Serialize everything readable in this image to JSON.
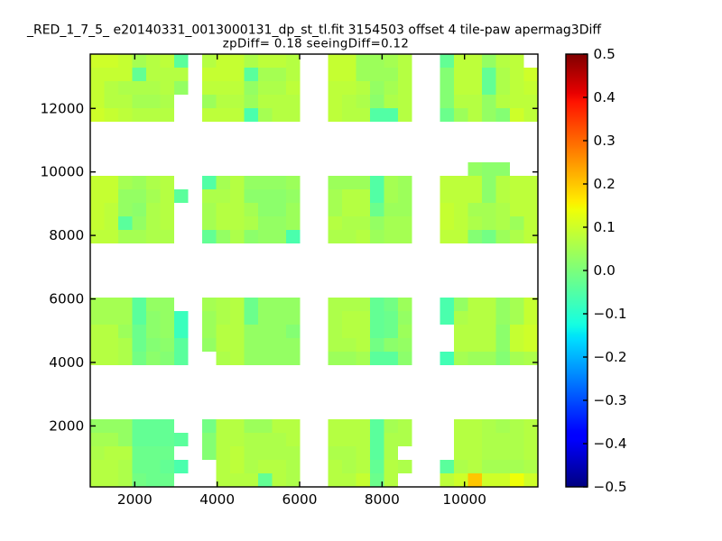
{
  "title": {
    "line1": "_RED_1_7_5_ e20140331_0013000131_dp_st_tl.fit 3154503 offset 4 tile-paw apermag3Diff",
    "line2": "zpDiff= 0.18 seeingDiff=0.12"
  },
  "chart_data": {
    "type": "heatmap",
    "colormap": "jet",
    "vmin": -0.5,
    "vmax": 0.5,
    "background_color": "#ffffff",
    "axis_color": "#000000",
    "x_range": [
      920,
      11780
    ],
    "y_range": [
      80,
      13711
    ],
    "grid": {
      "cols": 32,
      "rows": 32
    },
    "x_ticks": [
      {
        "value": 2000,
        "label": "2000"
      },
      {
        "value": 4000,
        "label": "4000"
      },
      {
        "value": 6000,
        "label": "6000"
      },
      {
        "value": 8000,
        "label": "8000"
      },
      {
        "value": 10000,
        "label": "10000"
      }
    ],
    "y_ticks": [
      {
        "value": 2000,
        "label": "2000"
      },
      {
        "value": 4000,
        "label": "4000"
      },
      {
        "value": 6000,
        "label": "6000"
      },
      {
        "value": 8000,
        "label": "8000"
      },
      {
        "value": 10000,
        "label": "10000"
      },
      {
        "value": 12000,
        "label": "12000"
      }
    ],
    "colorbar_ticks": [
      {
        "value": 0.5,
        "label": "0.5"
      },
      {
        "value": 0.4,
        "label": "0.4"
      },
      {
        "value": 0.3,
        "label": "0.3"
      },
      {
        "value": 0.2,
        "label": "0.2"
      },
      {
        "value": 0.1,
        "label": "0.1"
      },
      {
        "value": 0.0,
        "label": "0.0"
      },
      {
        "value": -0.1,
        "label": "−0.1"
      },
      {
        "value": -0.2,
        "label": "−0.2"
      },
      {
        "value": -0.3,
        "label": "−0.3"
      },
      {
        "value": -0.4,
        "label": "−0.4"
      },
      {
        "value": -0.5,
        "label": "−0.5"
      }
    ],
    "values": [
      [
        0.1,
        0.1,
        0.09,
        0.05,
        0.07,
        0.08,
        -0.04,
        null,
        0.07,
        0.09,
        0.09,
        0.06,
        0.08,
        0.08,
        0.07,
        null,
        null,
        0.09,
        0.09,
        0.04,
        0.04,
        0.05,
        0.07,
        null,
        null,
        -0.03,
        0.08,
        0.08,
        0.03,
        0.07,
        0.08,
        null
      ],
      [
        0.09,
        0.09,
        0.09,
        -0.03,
        0.07,
        0.07,
        0.07,
        null,
        0.09,
        0.09,
        0.09,
        -0.04,
        0.05,
        0.05,
        0.07,
        null,
        null,
        0.09,
        0.09,
        0.04,
        0.04,
        0.04,
        0.07,
        null,
        null,
        0.01,
        0.08,
        0.08,
        -0.03,
        0.06,
        0.08,
        0.1
      ],
      [
        0.09,
        0.07,
        0.06,
        0.06,
        0.06,
        0.07,
        0.03,
        null,
        0.08,
        0.08,
        0.08,
        0.03,
        0.06,
        0.06,
        0.08,
        null,
        null,
        0.08,
        0.08,
        0.07,
        0.03,
        0.05,
        0.07,
        null,
        null,
        0.01,
        0.08,
        0.08,
        -0.03,
        0.06,
        0.08,
        0.09
      ],
      [
        0.09,
        0.07,
        0.07,
        0.05,
        0.05,
        0.06,
        null,
        null,
        0.04,
        0.07,
        0.07,
        0.04,
        0.07,
        0.07,
        0.07,
        null,
        null,
        0.08,
        0.07,
        0.06,
        0.02,
        0.06,
        0.07,
        null,
        null,
        0.01,
        0.07,
        0.07,
        0.03,
        0.07,
        0.08,
        0.08
      ],
      [
        0.1,
        0.09,
        0.08,
        0.07,
        0.07,
        0.07,
        null,
        null,
        0.08,
        0.08,
        0.08,
        -0.06,
        0.05,
        0.07,
        0.07,
        null,
        null,
        0.08,
        0.07,
        0.07,
        -0.05,
        -0.05,
        0.07,
        null,
        null,
        -0.02,
        0.04,
        0.07,
        0.03,
        0.01,
        0.1,
        0.08
      ],
      [
        null,
        null,
        null,
        null,
        null,
        null,
        null,
        null,
        null,
        null,
        null,
        null,
        null,
        null,
        null,
        null,
        null,
        null,
        null,
        null,
        null,
        null,
        null,
        null,
        null,
        null,
        null,
        null,
        null,
        null,
        null,
        null
      ],
      [
        null,
        null,
        null,
        null,
        null,
        null,
        null,
        null,
        null,
        null,
        null,
        null,
        null,
        null,
        null,
        null,
        null,
        null,
        null,
        null,
        null,
        null,
        null,
        null,
        null,
        null,
        null,
        null,
        null,
        null,
        null,
        null
      ],
      [
        null,
        null,
        null,
        null,
        null,
        null,
        null,
        null,
        null,
        null,
        null,
        null,
        null,
        null,
        null,
        null,
        null,
        null,
        null,
        null,
        null,
        null,
        null,
        null,
        null,
        null,
        null,
        null,
        null,
        null,
        null,
        null
      ],
      [
        null,
        null,
        null,
        null,
        null,
        null,
        null,
        null,
        null,
        null,
        null,
        null,
        null,
        null,
        null,
        null,
        null,
        null,
        null,
        null,
        null,
        null,
        null,
        null,
        null,
        null,
        null,
        0.03,
        0.02,
        0.02,
        null,
        null
      ],
      [
        0.09,
        0.09,
        0.05,
        0.04,
        0.06,
        0.07,
        null,
        null,
        -0.05,
        0.05,
        0.07,
        0.03,
        0.03,
        0.03,
        0.04,
        null,
        null,
        0.04,
        0.04,
        0.04,
        -0.05,
        0.05,
        0.04,
        null,
        null,
        0.08,
        0.08,
        0.08,
        0.02,
        0.07,
        0.08,
        0.08
      ],
      [
        0.09,
        0.09,
        0.03,
        0.03,
        0.05,
        0.07,
        -0.04,
        null,
        0.06,
        0.06,
        0.07,
        0.02,
        0.02,
        0.02,
        0.03,
        null,
        null,
        0.05,
        0.07,
        0.07,
        -0.05,
        0.05,
        0.04,
        null,
        null,
        0.08,
        0.08,
        0.08,
        0.02,
        0.07,
        0.08,
        0.08
      ],
      [
        0.09,
        0.08,
        0.03,
        0.02,
        0.06,
        0.07,
        null,
        null,
        0.05,
        0.07,
        0.07,
        0.05,
        0.02,
        0.02,
        0.04,
        null,
        null,
        0.05,
        0.07,
        0.07,
        -0.02,
        0.04,
        0.04,
        null,
        null,
        0.09,
        0.08,
        0.05,
        0.05,
        0.06,
        0.08,
        0.08
      ],
      [
        0.09,
        0.08,
        -0.04,
        0.03,
        0.06,
        0.07,
        null,
        null,
        0.05,
        0.07,
        0.07,
        0.06,
        0.03,
        0.03,
        0.04,
        null,
        null,
        0.07,
        0.06,
        0.06,
        0.03,
        0.05,
        0.05,
        null,
        null,
        0.09,
        0.08,
        0.06,
        0.05,
        0.06,
        0.04,
        0.08
      ],
      [
        0.08,
        0.08,
        0.05,
        0.05,
        0.06,
        0.06,
        null,
        null,
        -0.03,
        0.03,
        0.06,
        0.02,
        0.03,
        0.03,
        -0.06,
        null,
        null,
        0.06,
        0.06,
        0.07,
        0.04,
        0.05,
        0.05,
        null,
        null,
        0.08,
        0.08,
        0.01,
        -0.01,
        0.04,
        0.06,
        0.08
      ],
      [
        null,
        null,
        null,
        null,
        null,
        null,
        null,
        null,
        null,
        null,
        null,
        null,
        null,
        null,
        null,
        null,
        null,
        null,
        null,
        null,
        null,
        null,
        null,
        null,
        null,
        null,
        null,
        null,
        null,
        null,
        null,
        null
      ],
      [
        null,
        null,
        null,
        null,
        null,
        null,
        null,
        null,
        null,
        null,
        null,
        null,
        null,
        null,
        null,
        null,
        null,
        null,
        null,
        null,
        null,
        null,
        null,
        null,
        null,
        null,
        null,
        null,
        null,
        null,
        null,
        null
      ],
      [
        null,
        null,
        null,
        null,
        null,
        null,
        null,
        null,
        null,
        null,
        null,
        null,
        null,
        null,
        null,
        null,
        null,
        null,
        null,
        null,
        null,
        null,
        null,
        null,
        null,
        null,
        null,
        null,
        null,
        null,
        null,
        null
      ],
      [
        null,
        null,
        null,
        null,
        null,
        null,
        null,
        null,
        null,
        null,
        null,
        null,
        null,
        null,
        null,
        null,
        null,
        null,
        null,
        null,
        null,
        null,
        null,
        null,
        null,
        null,
        null,
        null,
        null,
        null,
        null,
        null
      ],
      [
        0.05,
        0.05,
        0.05,
        -0.04,
        0.03,
        0.03,
        null,
        null,
        0.05,
        0.06,
        0.07,
        -0.02,
        0.03,
        0.03,
        0.03,
        null,
        null,
        0.06,
        0.06,
        0.06,
        -0.03,
        -0.01,
        0.04,
        null,
        null,
        -0.06,
        0.03,
        0.07,
        0.07,
        0.03,
        0.05,
        0.09
      ],
      [
        0.05,
        0.05,
        0.05,
        -0.04,
        0.02,
        0.03,
        -0.08,
        null,
        0.04,
        0.06,
        0.07,
        -0.02,
        0.03,
        0.03,
        0.03,
        null,
        null,
        0.06,
        0.07,
        0.07,
        -0.03,
        -0.02,
        0.03,
        null,
        null,
        -0.06,
        0.06,
        0.07,
        0.07,
        0.03,
        0.05,
        0.09
      ],
      [
        0.07,
        0.07,
        0.04,
        -0.02,
        0.02,
        0.03,
        -0.08,
        null,
        0.04,
        0.07,
        0.07,
        0.03,
        0.03,
        0.03,
        0.01,
        null,
        null,
        0.06,
        0.07,
        0.07,
        -0.03,
        -0.02,
        0.04,
        null,
        null,
        null,
        0.07,
        0.07,
        0.07,
        0.02,
        0.09,
        0.1
      ],
      [
        0.07,
        0.07,
        0.06,
        -0.02,
        0.01,
        0.02,
        -0.04,
        null,
        0.03,
        0.07,
        0.07,
        0.03,
        0.03,
        0.03,
        0.03,
        null,
        null,
        0.06,
        0.06,
        0.07,
        -0.01,
        0.02,
        0.03,
        null,
        null,
        null,
        0.07,
        0.07,
        0.07,
        0.02,
        0.09,
        0.1
      ],
      [
        0.07,
        0.07,
        0.06,
        -0.01,
        0.02,
        0.01,
        -0.04,
        null,
        null,
        0.06,
        0.07,
        0.03,
        0.03,
        0.03,
        0.03,
        null,
        null,
        0.04,
        0.04,
        0.05,
        -0.04,
        -0.04,
        0.02,
        null,
        null,
        -0.07,
        0.05,
        0.04,
        0.04,
        0.01,
        0.05,
        0.06
      ],
      [
        null,
        null,
        null,
        null,
        null,
        null,
        null,
        null,
        null,
        null,
        null,
        null,
        null,
        null,
        null,
        null,
        null,
        null,
        null,
        null,
        null,
        null,
        null,
        null,
        null,
        null,
        null,
        null,
        null,
        null,
        null,
        null
      ],
      [
        null,
        null,
        null,
        null,
        null,
        null,
        null,
        null,
        null,
        null,
        null,
        null,
        null,
        null,
        null,
        null,
        null,
        null,
        null,
        null,
        null,
        null,
        null,
        null,
        null,
        null,
        null,
        null,
        null,
        null,
        null,
        null
      ],
      [
        null,
        null,
        null,
        null,
        null,
        null,
        null,
        null,
        null,
        null,
        null,
        null,
        null,
        null,
        null,
        null,
        null,
        null,
        null,
        null,
        null,
        null,
        null,
        null,
        null,
        null,
        null,
        null,
        null,
        null,
        null,
        null
      ],
      [
        null,
        null,
        null,
        null,
        null,
        null,
        null,
        null,
        null,
        null,
        null,
        null,
        null,
        null,
        null,
        null,
        null,
        null,
        null,
        null,
        null,
        null,
        null,
        null,
        null,
        null,
        null,
        null,
        null,
        null,
        null,
        null
      ],
      [
        0.03,
        0.03,
        0.03,
        -0.03,
        -0.03,
        -0.03,
        null,
        null,
        -0.01,
        0.07,
        0.07,
        0.04,
        0.04,
        0.07,
        0.07,
        null,
        null,
        0.07,
        0.07,
        0.07,
        -0.04,
        0.05,
        0.06,
        null,
        null,
        null,
        0.07,
        0.07,
        0.06,
        0.05,
        0.06,
        0.07
      ],
      [
        0.05,
        0.05,
        0.03,
        -0.03,
        -0.03,
        -0.03,
        -0.04,
        null,
        0.01,
        0.07,
        0.07,
        0.06,
        0.06,
        0.06,
        0.07,
        null,
        null,
        0.07,
        0.07,
        0.07,
        -0.04,
        0.06,
        0.06,
        null,
        null,
        null,
        0.07,
        0.07,
        0.06,
        0.06,
        0.06,
        0.07
      ],
      [
        0.06,
        0.07,
        0.07,
        -0.02,
        -0.02,
        -0.02,
        null,
        null,
        0.01,
        0.07,
        0.08,
        0.06,
        0.06,
        0.06,
        0.06,
        null,
        null,
        0.06,
        0.06,
        0.07,
        -0.04,
        0.06,
        null,
        null,
        null,
        null,
        0.07,
        0.07,
        0.06,
        0.06,
        0.06,
        0.07
      ],
      [
        0.07,
        0.07,
        0.06,
        -0.02,
        -0.02,
        -0.03,
        -0.06,
        null,
        null,
        0.07,
        0.08,
        0.06,
        0.07,
        0.07,
        0.06,
        null,
        null,
        0.07,
        0.06,
        0.07,
        -0.03,
        0.07,
        0.06,
        null,
        null,
        -0.04,
        0.06,
        0.07,
        0.05,
        0.05,
        0.05,
        0.06
      ],
      [
        0.07,
        0.07,
        0.06,
        -0.01,
        -0.02,
        -0.02,
        null,
        null,
        null,
        0.07,
        0.07,
        0.07,
        -0.03,
        0.07,
        0.06,
        null,
        null,
        0.07,
        0.07,
        0.09,
        -0.02,
        0.07,
        null,
        null,
        null,
        0.08,
        0.1,
        0.2,
        0.1,
        0.1,
        0.14,
        0.1
      ]
    ]
  }
}
